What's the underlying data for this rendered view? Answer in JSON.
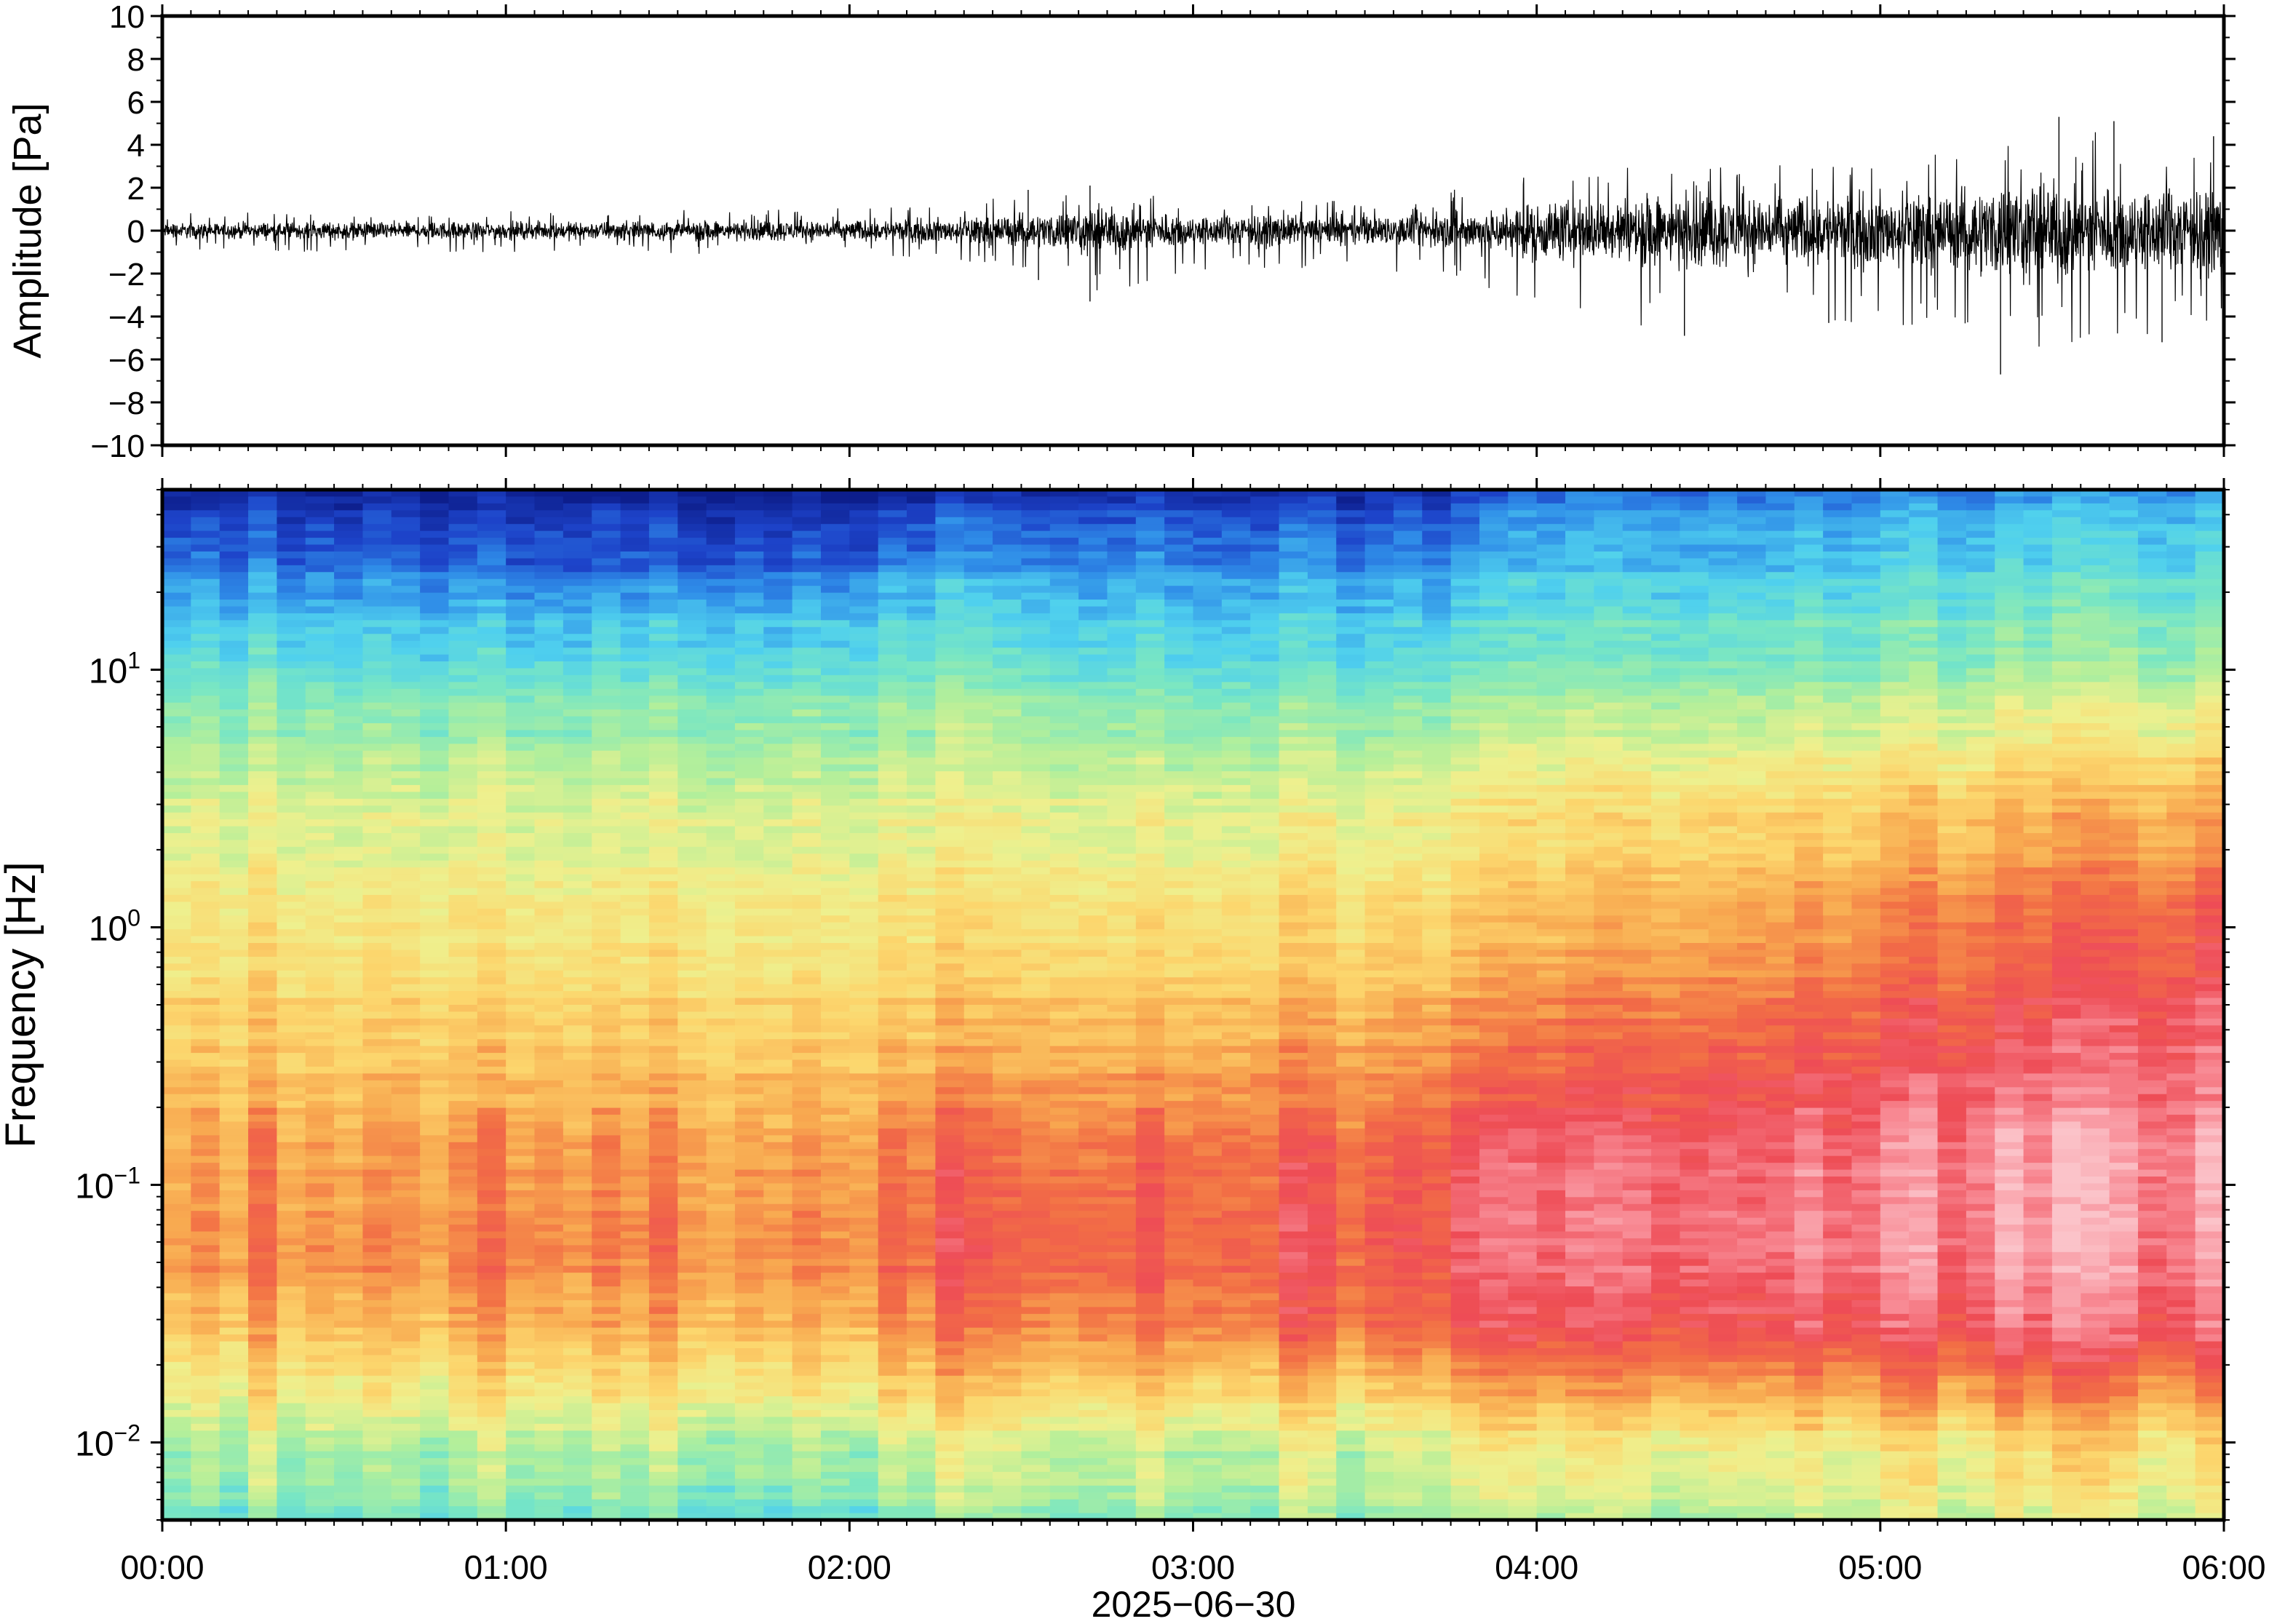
{
  "chart_data": [
    {
      "type": "line",
      "panel": "waveform",
      "ylabel": "Amplitude [Pa]",
      "ylim": [
        -10,
        10
      ],
      "yticks": [
        -10,
        -8,
        -6,
        -4,
        -2,
        0,
        2,
        4,
        6,
        8,
        10
      ],
      "ytick_labels": [
        "−10",
        "−8",
        "−6",
        "−4",
        "−2",
        "0",
        "2",
        "4",
        "6",
        "8",
        "10"
      ],
      "x_range_hours": [
        0,
        6
      ],
      "series": [
        {
          "color": "#000000",
          "envelope_time_hours": [
            0,
            0.5,
            1.0,
            1.5,
            2.0,
            2.3,
            2.6,
            2.7,
            3.0,
            3.5,
            3.8,
            4.0,
            4.4,
            4.8,
            5.2,
            5.4,
            5.6,
            5.8,
            6.0
          ],
          "envelope_max_pa": [
            0.8,
            0.9,
            0.9,
            1.0,
            1.1,
            1.3,
            1.8,
            2.0,
            1.5,
            1.4,
            2.0,
            2.7,
            3.2,
            3.2,
            3.6,
            4.6,
            4.8,
            4.6,
            3.9
          ],
          "envelope_min_pa": [
            -0.9,
            -1.0,
            -1.0,
            -1.1,
            -1.2,
            -1.3,
            -2.3,
            -3.3,
            -1.9,
            -1.7,
            -2.4,
            -3.5,
            -4.9,
            -4.4,
            -4.5,
            -6.7,
            -5.2,
            -5.0,
            -4.2
          ],
          "peaks": [
            {
              "t": 2.52,
              "v": 1.9
            },
            {
              "t": 2.55,
              "v": -2.3
            },
            {
              "t": 2.7,
              "v": 2.1
            },
            {
              "t": 2.7,
              "v": -3.3
            },
            {
              "t": 4.43,
              "v": -4.9
            },
            {
              "t": 4.85,
              "v": -4.3
            },
            {
              "t": 5.35,
              "v": -6.7
            },
            {
              "t": 5.52,
              "v": 5.3
            },
            {
              "t": 5.68,
              "v": 5.1
            },
            {
              "t": 5.82,
              "v": -5.2
            },
            {
              "t": 5.97,
              "v": 4.4
            }
          ]
        }
      ]
    },
    {
      "type": "heatmap",
      "panel": "spectrogram",
      "ylabel": "Frequency [Hz]",
      "yscale": "log",
      "ylim": [
        0.005,
        50
      ],
      "ytick_major": [
        0.01,
        0.1,
        1,
        10
      ],
      "ytick_labels": [
        {
          "base": "10",
          "exp": "−2"
        },
        {
          "base": "10",
          "exp": "−1"
        },
        {
          "base": "10",
          "exp": "0"
        },
        {
          "base": "10",
          "exp": "1"
        }
      ],
      "x_range_hours": [
        0,
        6
      ],
      "xticks_hours": [
        0,
        1,
        2,
        3,
        4,
        5,
        6
      ],
      "xtick_labels": [
        "00:00",
        "01:00",
        "02:00",
        "03:00",
        "04:00",
        "05:00",
        "06:00"
      ],
      "xlabel": "2025−06−30",
      "colormap": [
        "#0d1e8c",
        "#1d43c9",
        "#2f8de8",
        "#4fd0ee",
        "#78e6c4",
        "#b4ef9a",
        "#eef08e",
        "#fcd66d",
        "#f8a950",
        "#f26f45",
        "#ee4c56",
        "#f88a94",
        "#fbc3c9"
      ],
      "relative_level_description": "values 0–1 mapped onto colormap; level increases toward lower frequencies and later times",
      "time_columns": 72,
      "time_hours": [
        0,
        1,
        2,
        2.3,
        3,
        3.8,
        4,
        5,
        6
      ],
      "level_profiles": [
        {
          "f_hz": 50,
          "levels": [
            0.04,
            0.02,
            0.02,
            0.05,
            0.06,
            0.06,
            0.15,
            0.17,
            0.2
          ]
        },
        {
          "f_hz": 30,
          "levels": [
            0.14,
            0.1,
            0.12,
            0.16,
            0.16,
            0.15,
            0.22,
            0.24,
            0.27
          ]
        },
        {
          "f_hz": 10,
          "levels": [
            0.33,
            0.31,
            0.33,
            0.34,
            0.32,
            0.32,
            0.36,
            0.38,
            0.41
          ]
        },
        {
          "f_hz": 3,
          "levels": [
            0.48,
            0.47,
            0.48,
            0.49,
            0.49,
            0.5,
            0.55,
            0.6,
            0.66
          ]
        },
        {
          "f_hz": 1,
          "levels": [
            0.55,
            0.54,
            0.55,
            0.56,
            0.57,
            0.59,
            0.64,
            0.72,
            0.8
          ]
        },
        {
          "f_hz": 0.3,
          "levels": [
            0.62,
            0.62,
            0.63,
            0.65,
            0.68,
            0.71,
            0.77,
            0.83,
            0.88
          ]
        },
        {
          "f_hz": 0.1,
          "levels": [
            0.7,
            0.71,
            0.73,
            0.77,
            0.8,
            0.82,
            0.9,
            0.93,
            0.95
          ]
        },
        {
          "f_hz": 0.05,
          "levels": [
            0.71,
            0.72,
            0.74,
            0.78,
            0.8,
            0.82,
            0.89,
            0.92,
            0.92
          ]
        },
        {
          "f_hz": 0.025,
          "levels": [
            0.62,
            0.63,
            0.66,
            0.7,
            0.74,
            0.76,
            0.82,
            0.84,
            0.85
          ]
        },
        {
          "f_hz": 0.015,
          "levels": [
            0.52,
            0.53,
            0.55,
            0.58,
            0.58,
            0.6,
            0.66,
            0.68,
            0.68
          ]
        },
        {
          "f_hz": 0.01,
          "levels": [
            0.43,
            0.43,
            0.44,
            0.47,
            0.47,
            0.48,
            0.53,
            0.55,
            0.56
          ]
        },
        {
          "f_hz": 0.005,
          "levels": [
            0.35,
            0.34,
            0.34,
            0.38,
            0.4,
            0.4,
            0.44,
            0.46,
            0.48
          ]
        }
      ]
    }
  ]
}
